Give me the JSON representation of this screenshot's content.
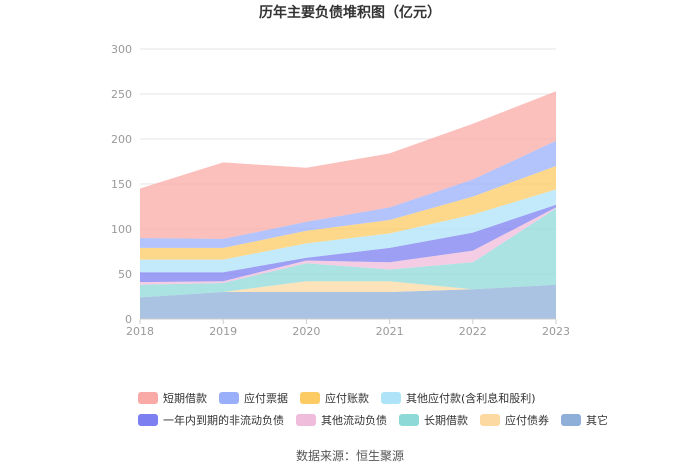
{
  "chart_data": {
    "type": "area",
    "stacked": true,
    "title": "历年主要负债堆积图（亿元）",
    "x": [
      "2018",
      "2019",
      "2020",
      "2021",
      "2022",
      "2023"
    ],
    "ylim": [
      0,
      300
    ],
    "yticks": [
      0,
      50,
      100,
      150,
      200,
      250,
      300
    ],
    "grid": true,
    "legend_position": "bottom",
    "series": [
      {
        "name": "其它",
        "color": "#8fafd9",
        "values": [
          24,
          30,
          30,
          30,
          33,
          38
        ]
      },
      {
        "name": "应付债券",
        "color": "#fcd9a1",
        "values": [
          0,
          0,
          12,
          12,
          0,
          0
        ]
      },
      {
        "name": "长期借款",
        "color": "#8dd9d8",
        "values": [
          14,
          10,
          20,
          13,
          30,
          85
        ]
      },
      {
        "name": "其他流动负债",
        "color": "#f0bcdc",
        "values": [
          3,
          2,
          3,
          8,
          13,
          1
        ]
      },
      {
        "name": "一年内到期的非流动负债",
        "color": "#7b7fef",
        "values": [
          11,
          10,
          3,
          16,
          20,
          3
        ]
      },
      {
        "name": "其他应付款(含利息和股利)",
        "color": "#aee3f8",
        "values": [
          14,
          14,
          16,
          16,
          20,
          17
        ]
      },
      {
        "name": "应付账款",
        "color": "#fdcb63",
        "values": [
          13,
          13,
          14,
          15,
          20,
          26
        ]
      },
      {
        "name": "应付票据",
        "color": "#99aff9",
        "values": [
          11,
          10,
          10,
          14,
          19,
          28
        ]
      },
      {
        "name": "短期借款",
        "color": "#f9aaa6",
        "values": [
          55,
          85,
          60,
          60,
          62,
          55
        ]
      }
    ],
    "legend_rows": [
      [
        "短期借款",
        "应付票据",
        "应付账款",
        "其他应付款(含利息和股利)"
      ],
      [
        "一年内到期的非流动负债",
        "其他流动负债",
        "长期借款",
        "应付债券",
        "其它"
      ]
    ]
  },
  "source_text": "数据来源：恒生聚源"
}
